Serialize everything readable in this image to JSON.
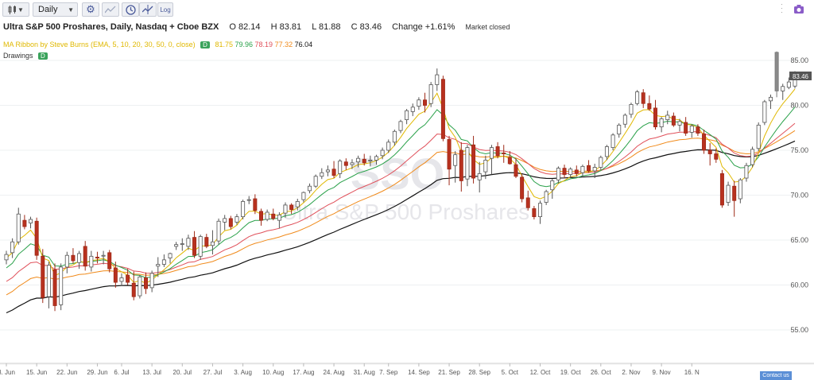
{
  "toolbar": {
    "interval_label": "Daily",
    "log_label": "Log",
    "icons": [
      "candles-icon",
      "gear-icon",
      "compare-icon",
      "clock-icon",
      "indicators-icon",
      "log-icon",
      "camera-icon"
    ]
  },
  "header": {
    "title": "Ultra S&P 500 Proshares, Daily, Nasdaq + Cboe BZX",
    "open": "O 82.14",
    "high": "H 83.81",
    "low": "L 81.88",
    "close": "C 83.46",
    "change": "Change +1.61%",
    "status": "Market closed"
  },
  "indicator": {
    "label": "MA Ribbon by Steve Burns (EMA, 5, 10, 20, 30, 50, 0, close)",
    "badge": "D",
    "values": [
      {
        "text": "81.75",
        "color": "#e0b800"
      },
      {
        "text": "79.96",
        "color": "#2aa14a"
      },
      {
        "text": "78.19",
        "color": "#e0505a"
      },
      {
        "text": "77.32",
        "color": "#f08a1a"
      },
      {
        "text": "76.04",
        "color": "#111111"
      }
    ]
  },
  "drawings": {
    "label": "Drawings",
    "badge": "D"
  },
  "watermark": {
    "symbol": "SSO",
    "name": "Ultra S&P 500 Proshares"
  },
  "price_tag": "83.46",
  "contact_label": "Contact us",
  "chart_data": {
    "type": "candlestick",
    "title": "Ultra S&P 500 Proshares, Daily, Nasdaq + Cboe BZX",
    "ylim": [
      51.5,
      87.5
    ],
    "y_ticks": [
      "55.00",
      "60.00",
      "65.00",
      "70.00",
      "75.00",
      "80.00",
      "85.00"
    ],
    "x_ticks": [
      "8. Jun",
      "15. Jun",
      "22. Jun",
      "29. Jun",
      "6. Jul",
      "13. Jul",
      "20. Jul",
      "27. Jul",
      "3. Aug",
      "10. Aug",
      "17. Aug",
      "24. Aug",
      "31. Aug",
      "7. Sep",
      "14. Sep",
      "21. Sep",
      "28. Sep",
      "5. Oct",
      "12. Oct",
      "19. Oct",
      "26. Oct",
      "2. Nov",
      "9. Nov",
      "16. N"
    ],
    "colors": {
      "up": "#ffffff",
      "down": "#b8311f",
      "ema5": "#e0b800",
      "ema10": "#2aa14a",
      "ema20": "#e0505a",
      "ema30": "#f08a1a",
      "ema50": "#111111"
    },
    "candles": [
      [
        62.8,
        63.8,
        62.3,
        63.4
      ],
      [
        63.6,
        65.2,
        63.0,
        64.8
      ],
      [
        64.8,
        68.6,
        64.5,
        67.9
      ],
      [
        67.2,
        67.8,
        66.2,
        66.5
      ],
      [
        66.9,
        67.6,
        66.3,
        67.3
      ],
      [
        67.1,
        67.5,
        62.8,
        63.3
      ],
      [
        63.2,
        64.0,
        58.0,
        58.6
      ],
      [
        58.7,
        62.6,
        57.4,
        62.2
      ],
      [
        61.7,
        62.4,
        57.1,
        57.7
      ],
      [
        57.8,
        62.4,
        57.2,
        62.0
      ],
      [
        62.0,
        63.7,
        61.3,
        63.3
      ],
      [
        63.3,
        64.1,
        62.4,
        62.7
      ],
      [
        62.5,
        63.8,
        61.8,
        63.5
      ],
      [
        64.3,
        64.9,
        61.6,
        62.1
      ],
      [
        62.0,
        63.8,
        61.5,
        63.2
      ],
      [
        63.1,
        63.7,
        62.4,
        63.0
      ],
      [
        63.3,
        63.8,
        62.3,
        63.3
      ],
      [
        63.6,
        63.9,
        61.4,
        61.8
      ],
      [
        61.9,
        62.6,
        59.7,
        60.3
      ],
      [
        60.4,
        61.3,
        59.9,
        60.8
      ],
      [
        61.1,
        61.8,
        60.0,
        60.3
      ],
      [
        60.2,
        61.5,
        58.3,
        58.7
      ],
      [
        58.8,
        61.1,
        58.5,
        60.9
      ],
      [
        60.8,
        61.4,
        59.0,
        59.6
      ],
      [
        59.7,
        61.6,
        59.2,
        61.3
      ],
      [
        62.1,
        63.1,
        60.9,
        62.3
      ],
      [
        62.3,
        63.4,
        62.0,
        62.8
      ],
      [
        63.0,
        63.6,
        62.4,
        63.5
      ],
      [
        64.3,
        64.8,
        63.9,
        64.5
      ],
      [
        64.6,
        65.2,
        63.8,
        64.6
      ],
      [
        64.3,
        65.6,
        63.9,
        65.2
      ],
      [
        65.3,
        66.0,
        63.0,
        63.3
      ],
      [
        63.2,
        65.6,
        62.8,
        65.4
      ],
      [
        65.3,
        65.7,
        64.1,
        64.3
      ],
      [
        64.4,
        66.1,
        63.4,
        64.8
      ],
      [
        64.9,
        67.4,
        64.5,
        67.1
      ],
      [
        67.0,
        67.8,
        66.1,
        67.4
      ],
      [
        67.4,
        67.7,
        66.2,
        66.5
      ],
      [
        67.0,
        67.9,
        66.7,
        67.6
      ],
      [
        67.6,
        69.5,
        67.3,
        69.3
      ],
      [
        69.5,
        69.9,
        69.0,
        69.5
      ],
      [
        69.6,
        70.1,
        67.9,
        68.3
      ],
      [
        68.2,
        68.5,
        66.6,
        67.2
      ],
      [
        67.3,
        68.4,
        67.1,
        68.1
      ],
      [
        67.9,
        68.5,
        67.2,
        67.4
      ],
      [
        67.2,
        68.1,
        66.3,
        67.8
      ],
      [
        68.0,
        69.2,
        67.5,
        68.9
      ],
      [
        68.9,
        69.1,
        67.9,
        68.4
      ],
      [
        68.7,
        69.6,
        68.3,
        69.3
      ],
      [
        69.5,
        70.4,
        69.2,
        70.3
      ],
      [
        70.5,
        71.3,
        70.2,
        71.0
      ],
      [
        71.0,
        72.3,
        70.8,
        72.1
      ],
      [
        72.1,
        73.0,
        71.8,
        72.5
      ],
      [
        72.6,
        73.3,
        72.1,
        72.8
      ],
      [
        72.9,
        73.8,
        71.9,
        72.2
      ],
      [
        72.4,
        74.0,
        71.9,
        73.8
      ],
      [
        73.7,
        74.1,
        72.8,
        73.3
      ],
      [
        73.4,
        74.0,
        72.9,
        73.6
      ],
      [
        73.7,
        74.4,
        73.1,
        74.1
      ],
      [
        74.0,
        74.6,
        73.3,
        73.6
      ],
      [
        73.8,
        74.4,
        73.2,
        73.9
      ],
      [
        73.9,
        74.5,
        73.4,
        74.3
      ],
      [
        74.4,
        75.3,
        74.0,
        75.0
      ],
      [
        75.0,
        76.2,
        74.7,
        75.9
      ],
      [
        75.9,
        77.3,
        75.5,
        77.1
      ],
      [
        77.2,
        78.4,
        76.9,
        78.2
      ],
      [
        78.4,
        79.6,
        77.9,
        79.4
      ],
      [
        79.3,
        80.2,
        78.8,
        79.8
      ],
      [
        79.9,
        80.9,
        79.5,
        80.6
      ],
      [
        80.6,
        81.4,
        79.2,
        80.0
      ],
      [
        80.2,
        82.6,
        79.8,
        82.3
      ],
      [
        82.3,
        84.1,
        81.6,
        83.4
      ],
      [
        82.9,
        83.3,
        76.0,
        76.3
      ],
      [
        76.2,
        76.6,
        71.1,
        72.9
      ],
      [
        73.3,
        74.9,
        71.4,
        74.5
      ],
      [
        75.0,
        75.9,
        70.4,
        71.6
      ],
      [
        71.8,
        75.6,
        71.0,
        75.3
      ],
      [
        75.6,
        76.6,
        71.3,
        71.9
      ],
      [
        71.7,
        73.7,
        70.3,
        72.4
      ],
      [
        72.6,
        74.4,
        71.8,
        73.9
      ],
      [
        74.1,
        75.6,
        72.3,
        75.3
      ],
      [
        75.4,
        75.9,
        74.1,
        74.4
      ],
      [
        74.7,
        75.6,
        73.6,
        74.6
      ],
      [
        74.2,
        74.9,
        73.4,
        73.5
      ],
      [
        73.4,
        74.1,
        71.9,
        72.1
      ],
      [
        72.0,
        72.3,
        69.2,
        69.6
      ],
      [
        69.7,
        70.5,
        68.3,
        68.6
      ],
      [
        68.5,
        68.8,
        67.3,
        67.6
      ],
      [
        67.6,
        69.4,
        66.8,
        69.1
      ],
      [
        69.2,
        70.6,
        68.9,
        70.4
      ],
      [
        70.6,
        71.8,
        69.6,
        71.6
      ],
      [
        71.7,
        73.2,
        71.3,
        73.0
      ],
      [
        73.0,
        73.4,
        71.9,
        72.3
      ],
      [
        72.3,
        73.1,
        71.9,
        72.9
      ],
      [
        72.8,
        73.3,
        72.1,
        72.4
      ],
      [
        72.5,
        73.4,
        72.0,
        73.2
      ],
      [
        73.3,
        73.9,
        72.5,
        72.7
      ],
      [
        72.7,
        73.5,
        71.9,
        73.1
      ],
      [
        73.1,
        74.4,
        72.8,
        74.2
      ],
      [
        74.3,
        75.6,
        73.9,
        75.4
      ],
      [
        75.3,
        76.9,
        75.0,
        76.7
      ],
      [
        76.8,
        78.0,
        76.4,
        77.8
      ],
      [
        77.9,
        79.1,
        77.5,
        78.9
      ],
      [
        79.0,
        80.3,
        78.6,
        80.1
      ],
      [
        80.2,
        81.7,
        80.0,
        81.5
      ],
      [
        81.4,
        81.8,
        79.7,
        80.2
      ],
      [
        80.2,
        81.1,
        79.4,
        79.6
      ],
      [
        79.7,
        80.6,
        77.3,
        77.6
      ],
      [
        77.6,
        78.7,
        77.0,
        78.5
      ],
      [
        78.4,
        79.4,
        77.9,
        78.9
      ],
      [
        78.8,
        79.2,
        77.6,
        77.8
      ],
      [
        77.8,
        78.5,
        77.1,
        78.2
      ],
      [
        78.1,
        78.7,
        76.6,
        76.9
      ],
      [
        77.0,
        77.9,
        76.4,
        77.7
      ],
      [
        77.6,
        77.9,
        76.6,
        76.9
      ],
      [
        76.8,
        77.3,
        74.6,
        75.0
      ],
      [
        75.0,
        75.8,
        73.3,
        74.6
      ],
      [
        74.6,
        75.2,
        73.6,
        74.0
      ],
      [
        72.4,
        72.8,
        68.6,
        68.9
      ],
      [
        69.2,
        71.5,
        68.8,
        71.1
      ],
      [
        71.0,
        71.6,
        67.6,
        69.4
      ],
      [
        69.6,
        71.9,
        69.1,
        71.7
      ],
      [
        71.9,
        73.6,
        71.5,
        73.3
      ],
      [
        73.4,
        75.4,
        73.1,
        75.1
      ],
      [
        75.2,
        78.1,
        74.9,
        77.8
      ],
      [
        78.1,
        80.6,
        77.8,
        80.4
      ],
      [
        80.5,
        81.2,
        79.6,
        80.9
      ],
      [
        85.9,
        86.0,
        80.9,
        81.6
      ],
      [
        81.6,
        82.4,
        80.6,
        82.1
      ],
      [
        82.0,
        83.1,
        81.8,
        82.6
      ],
      [
        82.14,
        83.81,
        81.88,
        83.46
      ]
    ],
    "ema_final": {
      "ema5": 81.75,
      "ema10": 79.96,
      "ema20": 78.19,
      "ema30": 77.32,
      "ema50": 76.04
    }
  }
}
